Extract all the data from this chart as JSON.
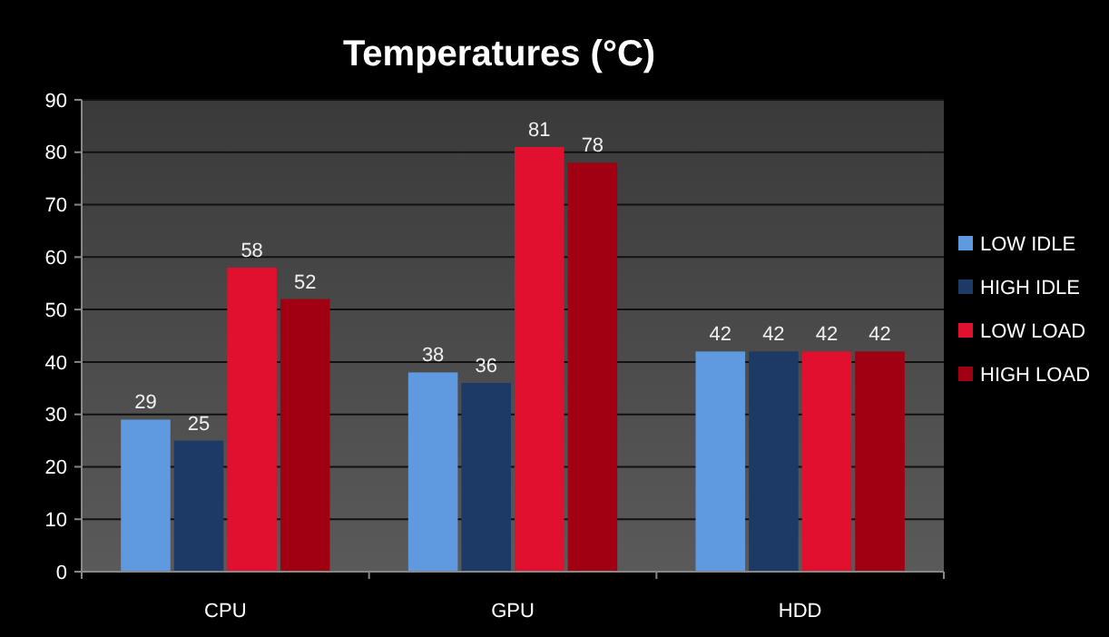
{
  "chart_data": {
    "type": "bar",
    "title": "Temperatures (°C)",
    "categories": [
      "CPU",
      "GPU",
      "HDD"
    ],
    "series": [
      {
        "name": "LOW IDLE",
        "color": "#5f9ae0",
        "values": [
          29,
          38,
          42
        ]
      },
      {
        "name": "HIGH IDLE",
        "color": "#1d3a66",
        "values": [
          25,
          36,
          42
        ]
      },
      {
        "name": "LOW LOAD",
        "color": "#e0102e",
        "values": [
          58,
          81,
          42
        ]
      },
      {
        "name": "HIGH LOAD",
        "color": "#a00012",
        "values": [
          52,
          78,
          42
        ]
      }
    ],
    "ylim": [
      0,
      90
    ],
    "yticks": [
      0,
      10,
      20,
      30,
      40,
      50,
      60,
      70,
      80,
      90
    ],
    "grid": "y",
    "legend": "right",
    "data_labels": true
  }
}
